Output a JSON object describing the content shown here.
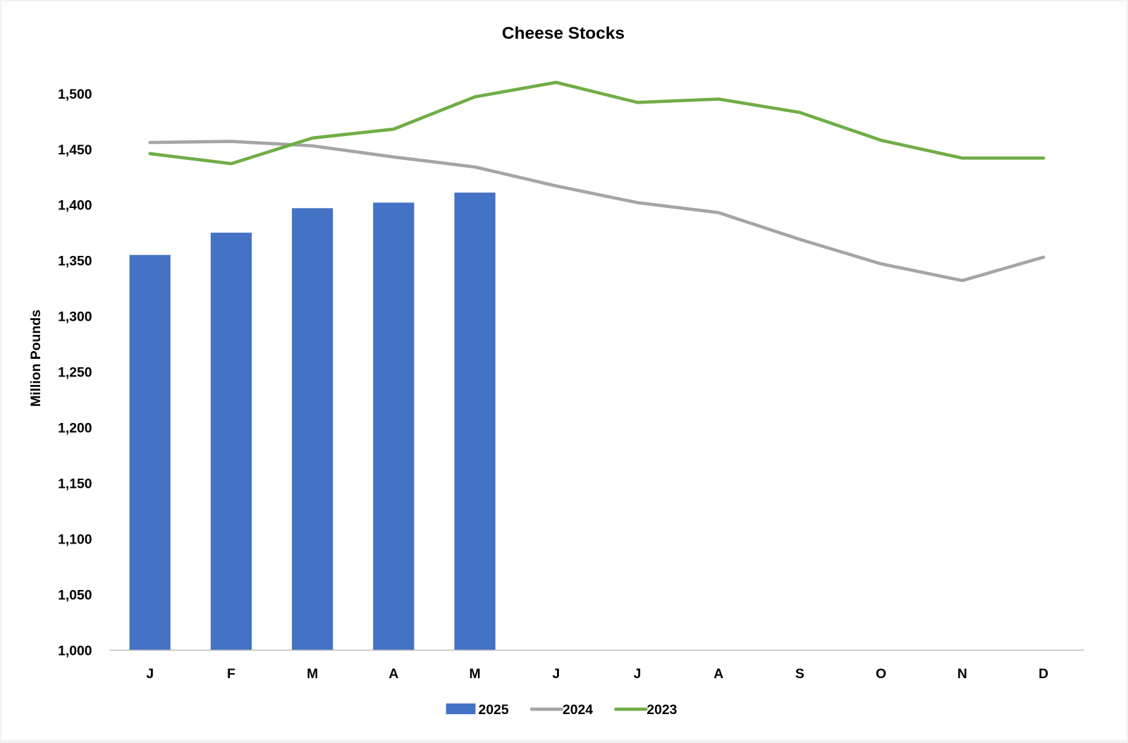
{
  "chart_data": {
    "type": "bar+line",
    "title": "Cheese Stocks",
    "xlabel": "",
    "ylabel": "Million Pounds",
    "ylim": [
      1000,
      1500
    ],
    "yticks": [
      1000,
      1050,
      1100,
      1150,
      1200,
      1250,
      1300,
      1350,
      1400,
      1450,
      1500
    ],
    "ytick_labels": [
      "1,000",
      "1,050",
      "1,100",
      "1,150",
      "1,200",
      "1,250",
      "1,300",
      "1,350",
      "1,400",
      "1,450",
      "1,500"
    ],
    "categories": [
      "J",
      "F",
      "M",
      "A",
      "M",
      "J",
      "J",
      "A",
      "S",
      "O",
      "N",
      "D"
    ],
    "grid": false,
    "legend_position": "bottom",
    "series": [
      {
        "name": "2025",
        "type": "bar",
        "color": "#4472C4",
        "values": [
          1355,
          1375,
          1397,
          1402,
          1411,
          null,
          null,
          null,
          null,
          null,
          null,
          null
        ]
      },
      {
        "name": "2024",
        "type": "line",
        "color": "#A5A5A5",
        "values": [
          1456,
          1457,
          1453,
          1443,
          1434,
          1417,
          1402,
          1393,
          1369,
          1347,
          1332,
          1353
        ]
      },
      {
        "name": "2023",
        "type": "line",
        "color": "#70AD47",
        "values": [
          1446,
          1437,
          1460,
          1468,
          1497,
          1510,
          1492,
          1495,
          1483,
          1458,
          1442,
          1442
        ]
      }
    ]
  }
}
